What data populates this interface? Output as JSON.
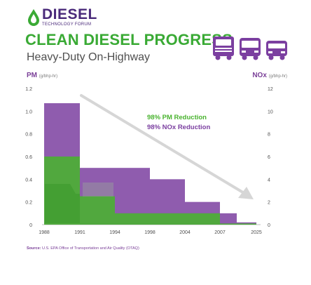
{
  "header": {
    "brand": "DIESEL",
    "brand_sub": "TECHNOLOGY FORUM",
    "title": "CLEAN DIESEL PROGRESS",
    "subtitle": "Heavy-Duty On-Highway",
    "vehicle_icons": [
      "truck-icon",
      "bus-icon",
      "school-bus-icon"
    ]
  },
  "axes": {
    "left_title": "PM",
    "left_unit": "(g/bhp-hr)",
    "right_title": "NOx",
    "right_unit": "(g/bhp-hr)"
  },
  "annotations": {
    "pm_reduction": "98% PM Reduction",
    "nox_reduction": "98% NOx Reduction"
  },
  "source": {
    "label": "Source:",
    "text": "U.S. EPA Office of Transportation and Air Quality (OTAQ)"
  },
  "colors": {
    "pm": "#49b32f",
    "nox": "#7b3fa0",
    "title_green": "#3aaa35",
    "logo_purple": "#4a2a7a"
  },
  "chart_data": {
    "type": "bar",
    "x_ticks": [
      "1988",
      "1991",
      "1994",
      "1998",
      "2004",
      "2007",
      "2025"
    ],
    "pm_axis": {
      "ylim": [
        0,
        1.2
      ],
      "ticks": [
        "0",
        "0.2",
        "0.4",
        "0.6",
        "0.8",
        "1.0",
        "1.2"
      ]
    },
    "nox_axis": {
      "ylim": [
        0,
        12
      ],
      "ticks": [
        "0",
        "2",
        "4",
        "6",
        "8",
        "10",
        "12"
      ]
    },
    "series": [
      {
        "name": "PM",
        "axis": "left",
        "steps": [
          {
            "from": "1988",
            "to": "1991",
            "value": 0.6
          },
          {
            "from": "1991",
            "to": "1994",
            "value": 0.25
          },
          {
            "from": "1994",
            "to": "2007",
            "value": 0.1
          },
          {
            "from": "2007",
            "to": "2025",
            "value": 0.01
          }
        ]
      },
      {
        "name": "NOx",
        "axis": "right",
        "steps": [
          {
            "from": "1988",
            "to": "1991",
            "value": 10.7
          },
          {
            "from": "1991",
            "to": "1998",
            "value": 5.0
          },
          {
            "from": "1998",
            "to": "2004",
            "value": 4.0
          },
          {
            "from": "2004",
            "to": "2007",
            "value": 2.0
          },
          {
            "from": "2007",
            "to": "2010",
            "value": 1.0
          },
          {
            "from": "2010",
            "to": "2025",
            "value": 0.2
          }
        ]
      }
    ]
  }
}
